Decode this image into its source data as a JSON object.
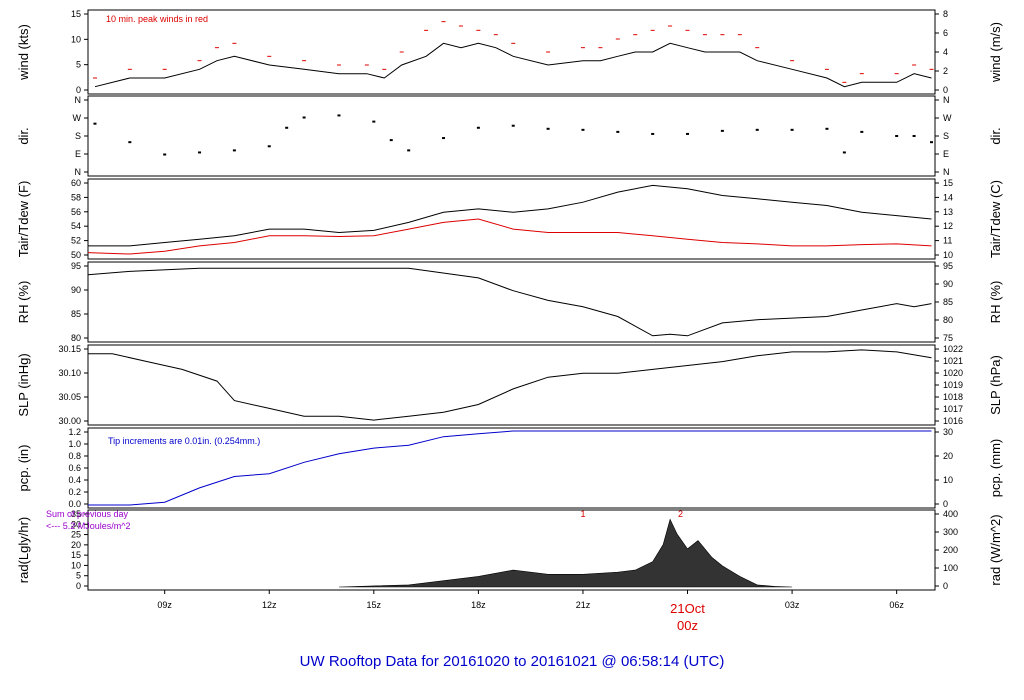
{
  "title": "UW Rooftop Data for 20161020  to  20161021 @ 06:58:14  (UTC)",
  "colors": {
    "axis": "#000000",
    "text": "#000000",
    "red": "#dd0000",
    "blue": "#0000cc",
    "title": "#0000cc",
    "purple": "#9900cc"
  },
  "x_axis": {
    "ticks": [
      "09z",
      "12z",
      "15z",
      "18z",
      "21z",
      "00z",
      "03z",
      "06z"
    ],
    "date_label": "21Oct",
    "date_tick": "00z"
  },
  "chart_data": [
    {
      "type": "line",
      "panel": "wind",
      "ylabel_left": "wind (kts)",
      "ylabel_right": "wind (m/s)",
      "yticks_left": [
        "0",
        "5",
        "10",
        "15"
      ],
      "yticks_right": [
        "0",
        "2",
        "4",
        "6",
        "8"
      ],
      "ylim": [
        0,
        18
      ],
      "annotation": "10 min. peak winds in red",
      "x": [
        7,
        8,
        9,
        10,
        10.5,
        11,
        12,
        13,
        14,
        14.8,
        15.3,
        15.8,
        16.5,
        17,
        17.5,
        18,
        18.5,
        19,
        20,
        21,
        21.5,
        22,
        22.5,
        23,
        23.5,
        24,
        24.5,
        25,
        25.5,
        26,
        27,
        28,
        28.5,
        29,
        30,
        30.5,
        31
      ],
      "values": [
        1,
        3,
        3,
        5,
        7,
        8,
        6,
        5,
        4,
        4,
        3,
        6,
        8,
        11,
        10,
        11,
        10,
        8,
        6,
        7,
        7,
        8,
        9,
        9,
        11,
        10,
        9,
        9,
        9,
        7,
        5,
        3,
        1,
        2,
        2,
        4,
        3
      ],
      "peaks": [
        3,
        5,
        5,
        7,
        10,
        11,
        8,
        7,
        6,
        6,
        5,
        9,
        14,
        16,
        15,
        14,
        13,
        11,
        9,
        10,
        10,
        12,
        13,
        14,
        15,
        14,
        13,
        13,
        13,
        10,
        7,
        5,
        2,
        4,
        4,
        6,
        5
      ]
    },
    {
      "type": "scatter",
      "panel": "dir",
      "ylabel_left": "dir.",
      "ylabel_right": "dir.",
      "yticks_left": [
        "N",
        "E",
        "S",
        "W",
        "N"
      ],
      "yticks_right": [
        "N",
        "E",
        "S",
        "W",
        "N"
      ],
      "ylim": [
        0,
        360
      ],
      "x": [
        7,
        8,
        9,
        10,
        11,
        12,
        12.5,
        13,
        14,
        15,
        15.5,
        16,
        17,
        18,
        19,
        20,
        21,
        22,
        23,
        24,
        25,
        26,
        27,
        28,
        28.5,
        29,
        30,
        30.5,
        31
      ],
      "values": [
        240,
        150,
        90,
        100,
        110,
        130,
        220,
        270,
        280,
        250,
        160,
        110,
        170,
        220,
        230,
        215,
        210,
        200,
        190,
        190,
        205,
        210,
        210,
        215,
        100,
        200,
        180,
        180,
        150
      ]
    },
    {
      "type": "line",
      "panel": "temp",
      "ylabel_left": "Tair/Tdew (F)",
      "ylabel_right": "Tair/Tdew (C)",
      "yticks_left": [
        "50",
        "52",
        "54",
        "56",
        "58",
        "60"
      ],
      "yticks_right": [
        "10",
        "11",
        "12",
        "13",
        "14",
        "15"
      ],
      "ylim": [
        49.5,
        60.5
      ],
      "x": [
        6.8,
        8,
        9,
        10,
        11,
        12,
        13,
        14,
        15,
        16,
        17,
        18,
        19,
        20,
        21,
        22,
        23,
        24,
        25,
        26,
        27,
        28,
        29,
        30,
        31
      ],
      "series": [
        {
          "key": "tair",
          "values": [
            51,
            51,
            51.5,
            52,
            52.5,
            53.5,
            53.5,
            53,
            53.3,
            54.5,
            56,
            56.5,
            56,
            56.5,
            57.5,
            59,
            60,
            59.5,
            58.5,
            58,
            57.5,
            57,
            56,
            55.5,
            55
          ]
        },
        {
          "key": "tdew",
          "values": [
            50,
            49.8,
            50.2,
            51,
            51.5,
            52.5,
            52.5,
            52.4,
            52.5,
            53.5,
            54.5,
            55,
            53.5,
            53,
            53,
            53,
            52.5,
            52,
            51.5,
            51.3,
            51,
            51,
            51.2,
            51.3,
            51
          ]
        }
      ]
    },
    {
      "type": "line",
      "panel": "rh",
      "ylabel_left": "RH (%)",
      "ylabel_right": "RH (%)",
      "yticks_left": [
        "80",
        "85",
        "90",
        "95"
      ],
      "yticks_right": [
        "75",
        "80",
        "85",
        "90",
        "95"
      ],
      "ylim": [
        75,
        98
      ],
      "x": [
        6.8,
        8,
        10,
        12,
        14,
        16,
        18,
        19,
        20,
        21,
        22,
        23,
        23.5,
        24,
        25,
        26,
        27,
        28,
        29,
        30,
        30.5,
        31
      ],
      "values": [
        95,
        96,
        97,
        97,
        97,
        97,
        94,
        90,
        87,
        85,
        82,
        76,
        76.5,
        76,
        80,
        81,
        81.5,
        82,
        84,
        86,
        85,
        86
      ]
    },
    {
      "type": "line",
      "panel": "slp",
      "ylabel_left": "SLP (inHg)",
      "ylabel_right": "SLP (hPa)",
      "yticks_left": [
        "30.00",
        "30.05",
        "30.10",
        "30.15"
      ],
      "yticks_right": [
        "1016",
        "1017",
        "1018",
        "1019",
        "1020",
        "1021",
        "1022"
      ],
      "ylim": [
        29.995,
        30.185
      ],
      "x": [
        6.8,
        7.5,
        8.5,
        9.5,
        10.5,
        11,
        12,
        13,
        14,
        15,
        16,
        17,
        18,
        19,
        20,
        21,
        22,
        23,
        24,
        25,
        26,
        27,
        28,
        29,
        30,
        31
      ],
      "values": [
        30.17,
        30.17,
        30.15,
        30.13,
        30.1,
        30.05,
        30.03,
        30.01,
        30.01,
        30.0,
        30.01,
        30.02,
        30.04,
        30.08,
        30.11,
        30.12,
        30.12,
        30.13,
        30.14,
        30.15,
        30.165,
        30.175,
        30.175,
        30.18,
        30.175,
        30.16
      ]
    },
    {
      "type": "line",
      "panel": "pcp",
      "ylabel_left": "pcp. (in)",
      "ylabel_right": "pcp. (mm)",
      "yticks_left": [
        "0.0",
        "0.2",
        "0.4",
        "0.6",
        "0.8",
        "1.0",
        "1.2"
      ],
      "yticks_right": [
        "0",
        "10",
        "20",
        "30"
      ],
      "ylim": [
        0,
        1.3
      ],
      "annotation": "Tip increments are 0.01in. (0.254mm.)",
      "x": [
        6.8,
        8,
        9,
        10,
        11,
        12,
        13,
        14,
        15,
        16,
        17,
        18,
        19,
        20,
        21,
        22,
        23,
        24,
        25,
        26,
        27,
        28,
        29,
        30,
        31
      ],
      "values": [
        0,
        0,
        0.05,
        0.3,
        0.5,
        0.55,
        0.75,
        0.9,
        1.0,
        1.05,
        1.2,
        1.25,
        1.3,
        1.3,
        1.3,
        1.3,
        1.3,
        1.3,
        1.3,
        1.3,
        1.3,
        1.3,
        1.3,
        1.3,
        1.3
      ]
    },
    {
      "type": "area",
      "panel": "rad",
      "ylabel_left": "rad(Lgly/hr)",
      "ylabel_right": "rad (W/m^2)",
      "yticks_left": [
        "0",
        "5",
        "10",
        "15",
        "20",
        "25",
        "30",
        "35"
      ],
      "yticks_right": [
        "0",
        "100",
        "200",
        "300",
        "400"
      ],
      "ylim": [
        0,
        35
      ],
      "annotation_1": "Sum of previous day",
      "annotation_2": "<--- 5.2 MJoules/m^2",
      "markers": [
        "1",
        "2"
      ],
      "x": [
        14,
        15,
        16,
        17,
        18,
        19,
        19.5,
        20,
        21,
        22,
        22.5,
        23,
        23.3,
        23.5,
        23.7,
        24,
        24.3,
        24.7,
        25,
        25.5,
        26,
        26.5,
        27
      ],
      "values": [
        0,
        0.5,
        1,
        3,
        5,
        8,
        7,
        6,
        6,
        7,
        8,
        12,
        20,
        32,
        25,
        18,
        22,
        14,
        10,
        5,
        1,
        0.3,
        0
      ]
    }
  ]
}
